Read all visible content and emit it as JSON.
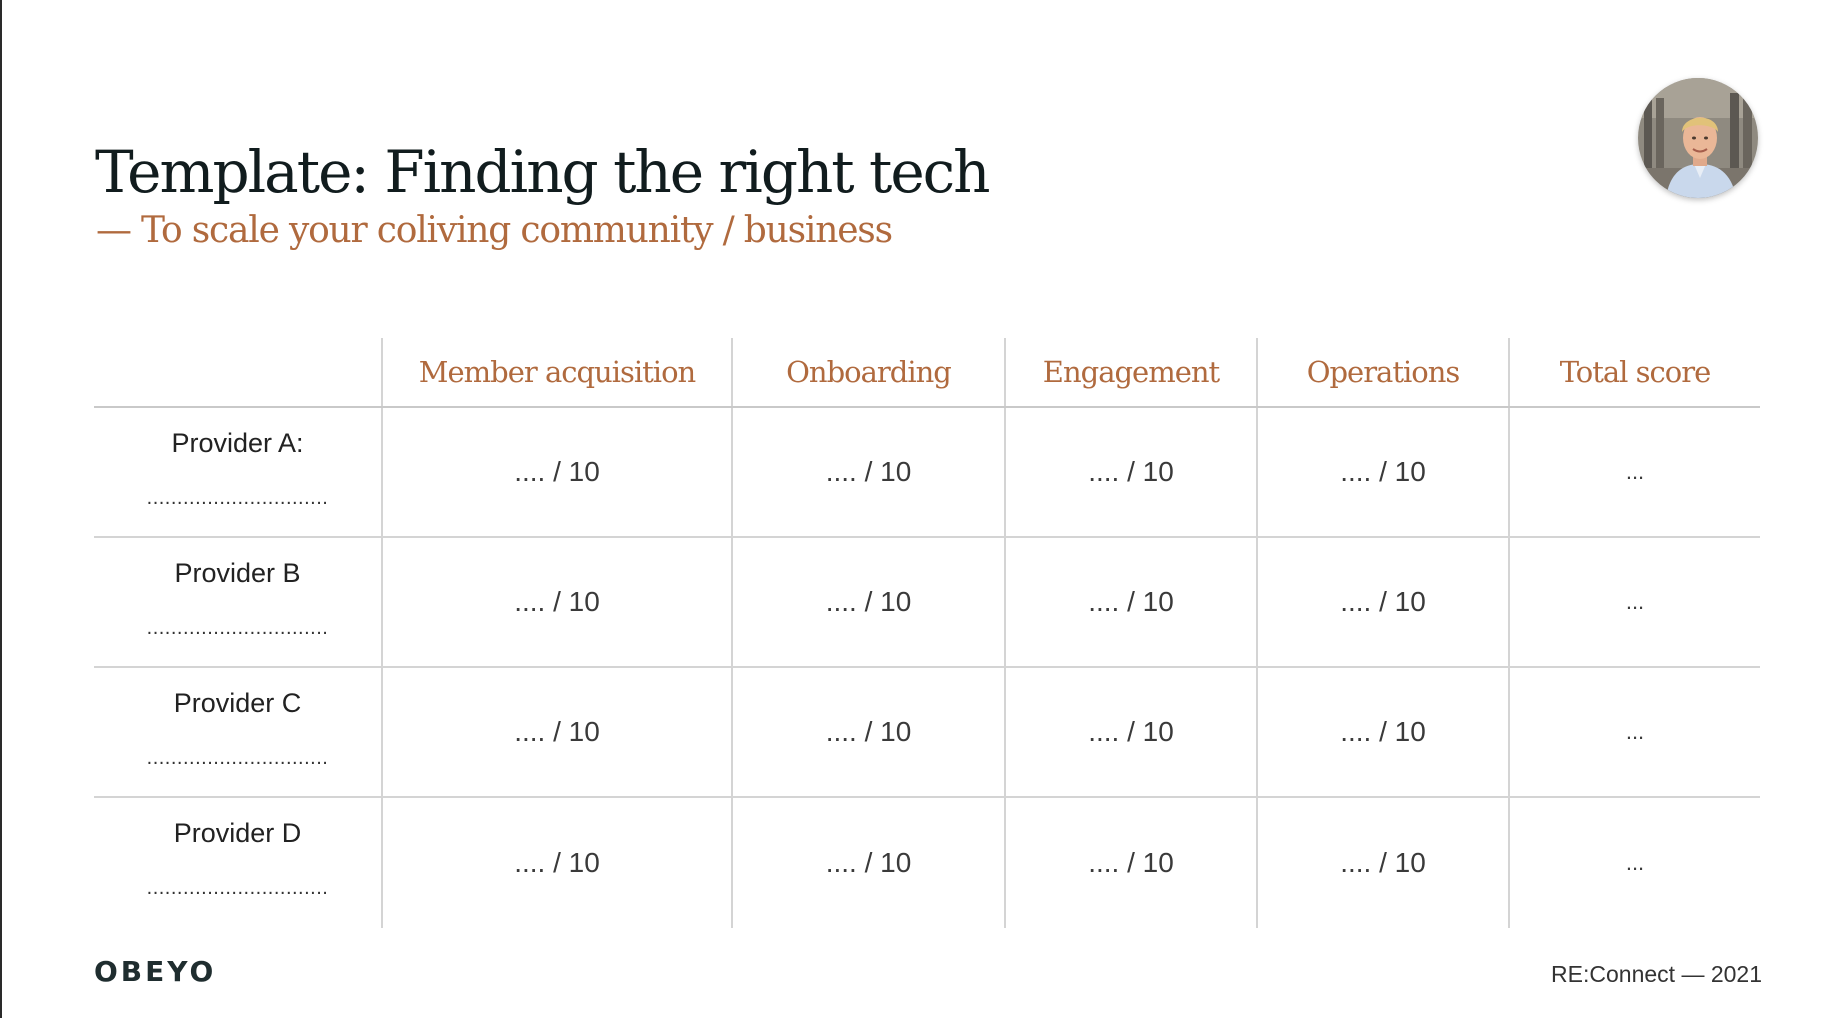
{
  "slide": {
    "title": "Template: Finding the right tech",
    "subtitle": "— To scale your coliving community / business"
  },
  "table": {
    "headers": [
      "",
      "Member acquisition",
      "Onboarding",
      "Engagement",
      "Operations",
      "Total score"
    ],
    "rows": [
      {
        "provider": "Provider A:",
        "blank": "..............................",
        "scores": [
          ".... / 10",
          ".... / 10",
          ".... / 10",
          ".... / 10"
        ],
        "total": "..."
      },
      {
        "provider": "Provider B",
        "blank": "..............................",
        "scores": [
          ".... / 10",
          ".... / 10",
          ".... / 10",
          ".... / 10"
        ],
        "total": "..."
      },
      {
        "provider": "Provider C",
        "blank": "..............................",
        "scores": [
          ".... / 10",
          ".... / 10",
          ".... / 10",
          ".... / 10"
        ],
        "total": "..."
      },
      {
        "provider": "Provider D",
        "blank": "..............................",
        "scores": [
          ".... / 10",
          ".... / 10",
          ".... / 10",
          ".... / 10"
        ],
        "total": "..."
      }
    ]
  },
  "footer": {
    "brand": "OBEYO",
    "event": "RE:Connect — 2021"
  },
  "colors": {
    "accent": "#b06a3e",
    "title": "#111c1e",
    "grid": "#d4d4d4"
  },
  "icons": {
    "avatar": "presenter-photo"
  }
}
